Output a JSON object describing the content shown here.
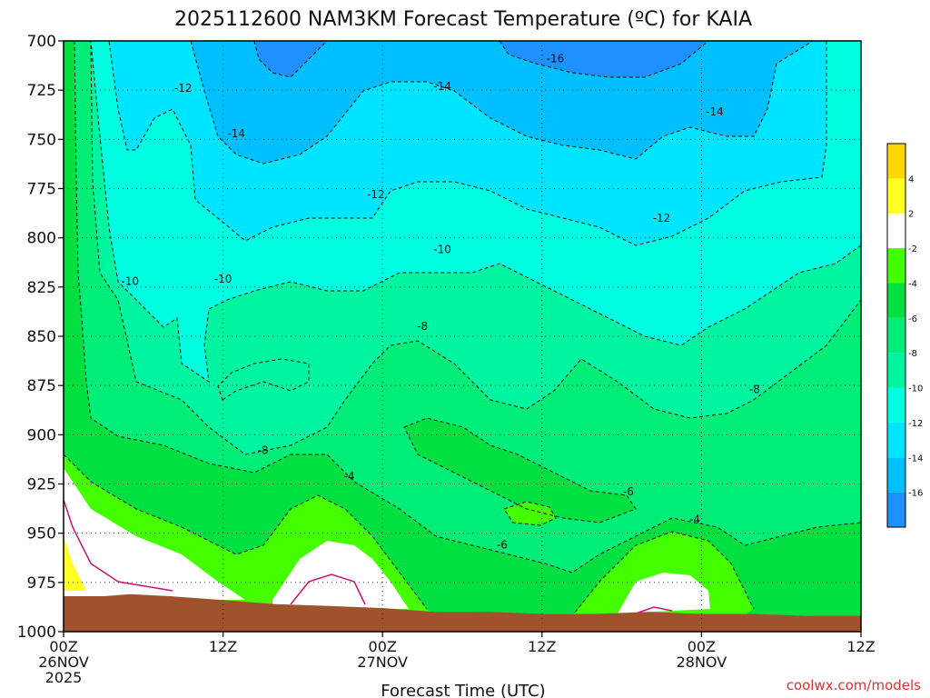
{
  "chart_data": {
    "type": "contour",
    "title": "2025112600 NAM3KM Forecast Temperature (ºC) for KAIA",
    "xlabel": "Forecast Time (UTC)",
    "ylabel": "",
    "watermark": "coolwx.com/models",
    "x_units": "forecast hour",
    "xlim": [
      0,
      60
    ],
    "ylim": [
      1000,
      700
    ],
    "y_ticks": [
      700,
      725,
      750,
      775,
      800,
      825,
      850,
      875,
      900,
      925,
      950,
      975,
      1000
    ],
    "x_ticks": [
      {
        "hour": 0,
        "lines": [
          "00Z",
          "26NOV",
          "2025"
        ]
      },
      {
        "hour": 12,
        "lines": [
          "12Z"
        ]
      },
      {
        "hour": 24,
        "lines": [
          "00Z",
          "27NOV"
        ]
      },
      {
        "hour": 36,
        "lines": [
          "12Z"
        ]
      },
      {
        "hour": 48,
        "lines": [
          "00Z",
          "28NOV"
        ]
      },
      {
        "hour": 60,
        "lines": [
          "12Z"
        ]
      }
    ],
    "colorbar": {
      "levels": [
        -18,
        -16,
        -14,
        -12,
        -10,
        -8,
        -6,
        -4,
        -2,
        2,
        4,
        6
      ],
      "labels": [
        "-16",
        "-14",
        "-12",
        "-10",
        "-8",
        "-6",
        "-4",
        "-2",
        "2",
        "4"
      ],
      "colors": [
        "#1e90ff",
        "#00bfff",
        "#00e5ff",
        "#00ffe0",
        "#00f5a0",
        "#00ee77",
        "#00e040",
        "#44ff00",
        "#ffffff",
        "#ffff22",
        "#ffd700"
      ]
    },
    "terrain_color": "#a0522d",
    "terrain_profile": [
      {
        "hour": 0,
        "p": 982
      },
      {
        "hour": 3,
        "p": 982
      },
      {
        "hour": 5,
        "p": 981
      },
      {
        "hour": 8,
        "p": 982
      },
      {
        "hour": 12,
        "p": 984
      },
      {
        "hour": 16,
        "p": 986
      },
      {
        "hour": 20,
        "p": 987
      },
      {
        "hour": 24,
        "p": 988
      },
      {
        "hour": 28,
        "p": 990
      },
      {
        "hour": 32,
        "p": 990
      },
      {
        "hour": 36,
        "p": 991
      },
      {
        "hour": 40,
        "p": 991
      },
      {
        "hour": 44,
        "p": 990
      },
      {
        "hour": 48,
        "p": 991
      },
      {
        "hour": 52,
        "p": 991
      },
      {
        "hour": 56,
        "p": 992
      },
      {
        "hour": 60,
        "p": 992
      }
    ],
    "contour_labels": [
      {
        "text": "-16",
        "hour": 37,
        "p": 709
      },
      {
        "text": "-14",
        "hour": 28.5,
        "p": 723
      },
      {
        "text": "-14",
        "hour": 49,
        "p": 736
      },
      {
        "text": "-14",
        "hour": 13,
        "p": 747
      },
      {
        "text": "-12",
        "hour": 9,
        "p": 724
      },
      {
        "text": "-12",
        "hour": 23.5,
        "p": 778
      },
      {
        "text": "-12",
        "hour": 45,
        "p": 790
      },
      {
        "text": "-10",
        "hour": 28.5,
        "p": 806
      },
      {
        "text": "-10",
        "hour": 12,
        "p": 821
      },
      {
        "text": "-10",
        "hour": 5,
        "p": 822
      },
      {
        "text": "-8",
        "hour": 27,
        "p": 845
      },
      {
        "text": "-8",
        "hour": 52,
        "p": 877
      },
      {
        "text": "-8",
        "hour": 15,
        "p": 908
      },
      {
        "text": "-6",
        "hour": 42.5,
        "p": 929
      },
      {
        "text": "-6",
        "hour": 33,
        "p": 956
      },
      {
        "text": "-4",
        "hour": 21.5,
        "p": 921
      },
      {
        "text": "-4",
        "hour": 47.5,
        "p": 943
      }
    ]
  }
}
